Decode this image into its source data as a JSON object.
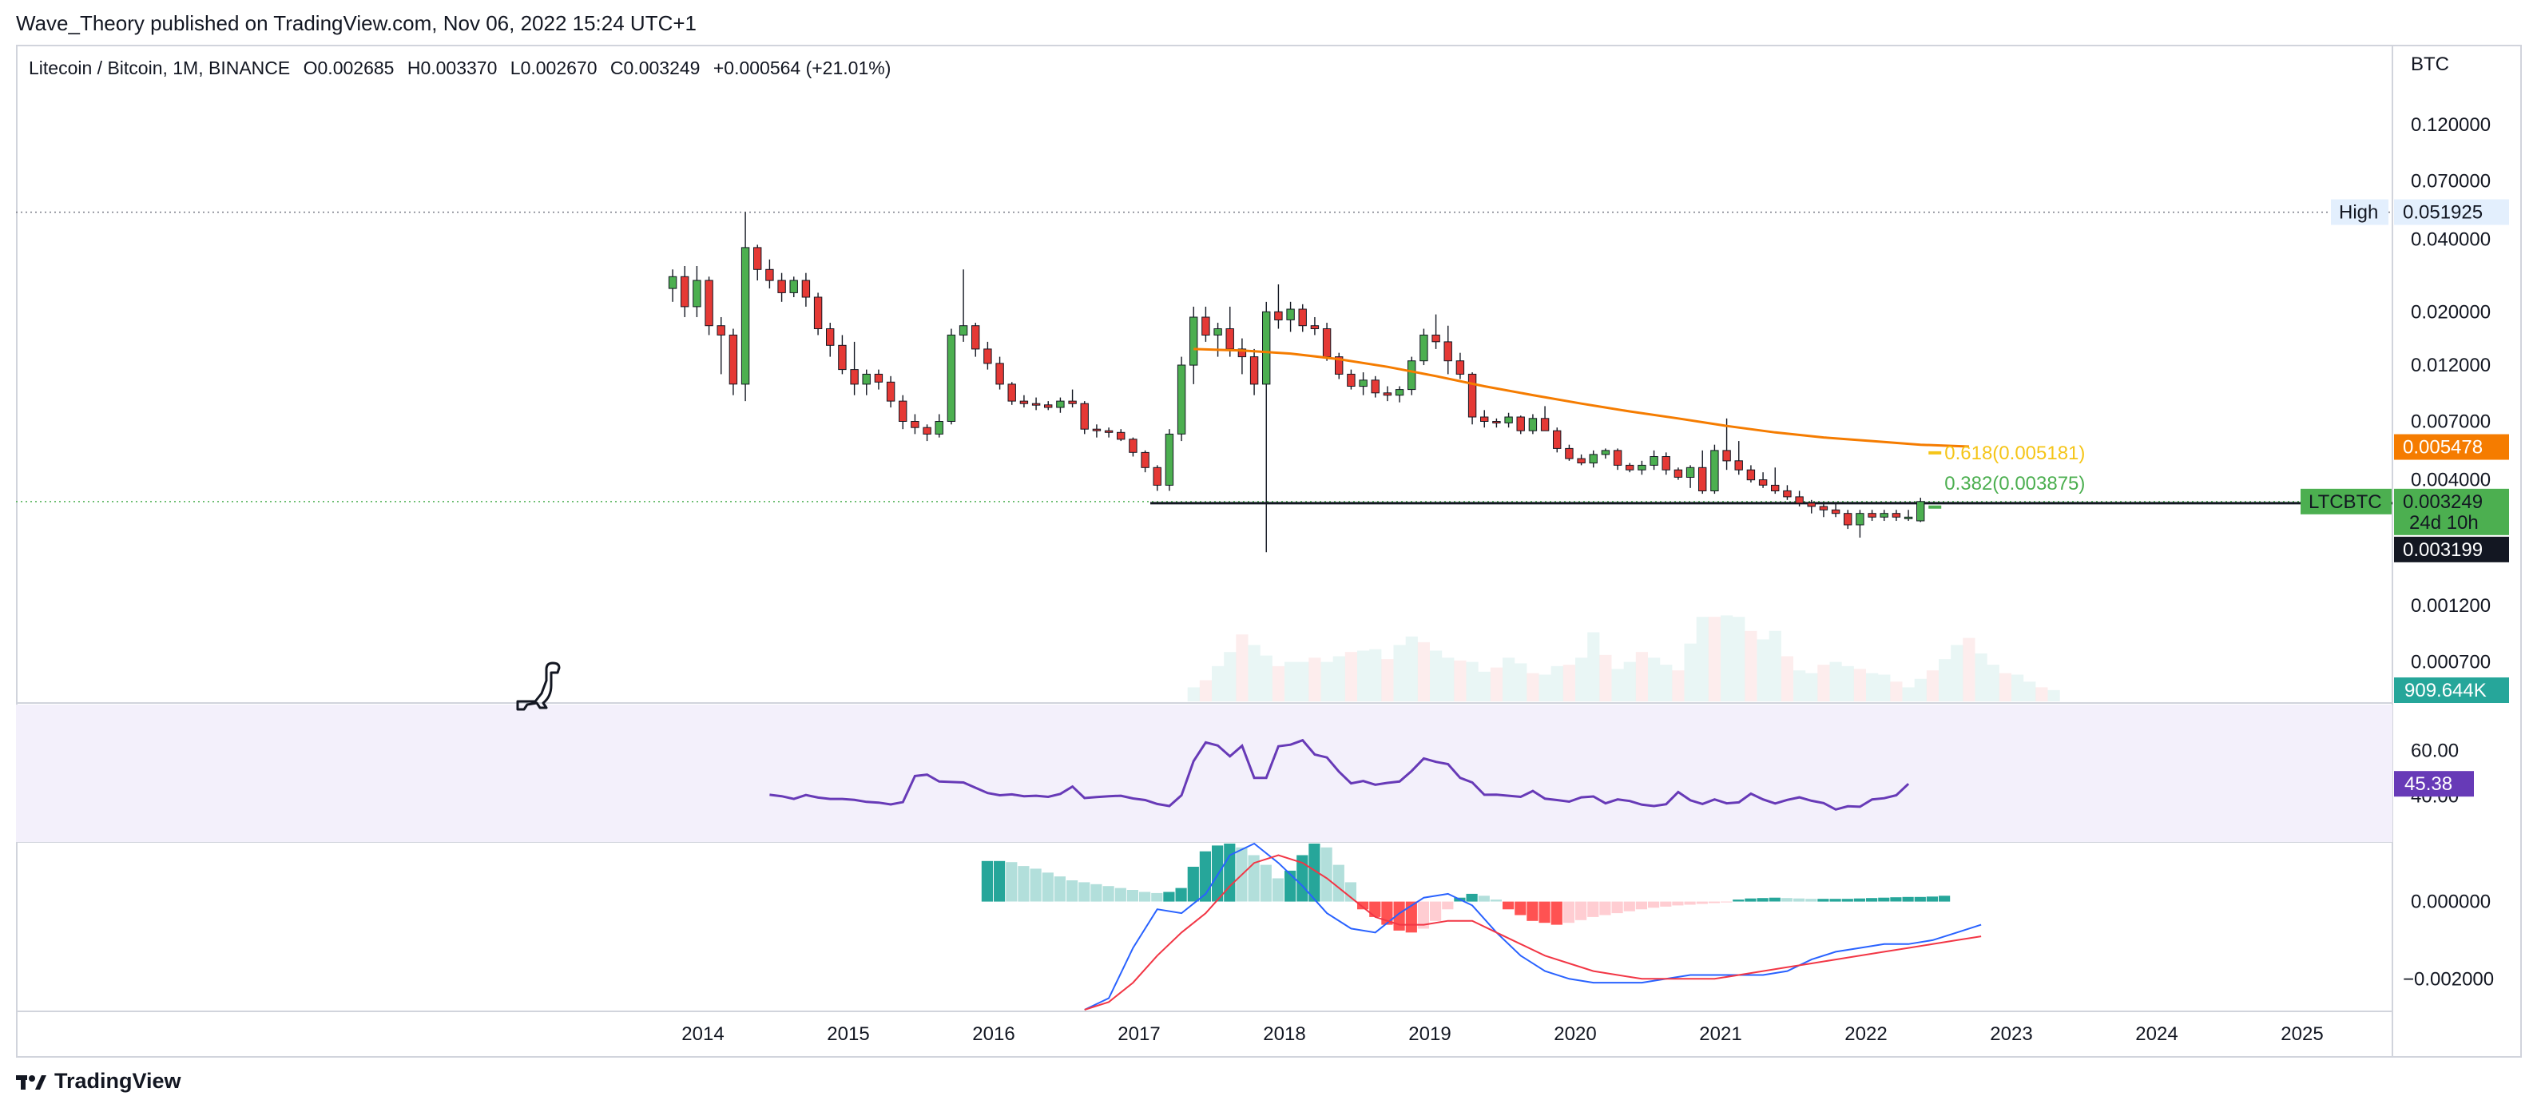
{
  "header": {
    "publisher_line": "Wave_Theory published on TradingView.com, Nov 06, 2022 15:24 UTC+1"
  },
  "legend": {
    "symbol": "Litecoin / Bitcoin, 1M, BINANCE",
    "open": "O0.002685",
    "high": "H0.003370",
    "low": "L0.002670",
    "close": "C0.003249",
    "change": "+0.000564 (+21.01%)"
  },
  "price_axis": {
    "currency": "BTC",
    "ticks": [
      "0.120000",
      "0.070000",
      "0.040000",
      "0.020000",
      "0.012000",
      "0.007000",
      "0.004000",
      "0.001200",
      "0.000700"
    ],
    "high_label": "High",
    "high_value": "0.051925",
    "ma_value": "0.005478",
    "symbol_tag": "LTCBTC",
    "last_price": "0.003249",
    "countdown": "24d 10h",
    "support_price": "0.003199",
    "volume_value": "909.644K"
  },
  "rsi_axis": {
    "ticks": [
      "60.00",
      "40.00"
    ],
    "value": "45.38"
  },
  "macd_axis": {
    "ticks": [
      "0.000000",
      "−0.002000"
    ]
  },
  "fib_labels": {
    "level_618": "0.618(0.005181)",
    "level_382": "0.382(0.003875)"
  },
  "time_axis": {
    "labels": [
      "2014",
      "2015",
      "2016",
      "2017",
      "2018",
      "2019",
      "2020",
      "2021",
      "2022",
      "2023",
      "2024",
      "2025"
    ]
  },
  "footer": {
    "brand": "TradingView"
  },
  "colors": {
    "up": "#4caf50",
    "down": "#e53935",
    "ma": "#f57c00",
    "rsi": "#673ab7",
    "macd": "#2962ff",
    "signal": "#f23645",
    "hist_up_strong": "#26a69a",
    "hist_up_weak": "#b2dfdb",
    "hist_down_strong": "#ff5252",
    "hist_down_weak": "#ffcdd2",
    "volume_up": "#26a69a",
    "volume_down": "#ef5350"
  },
  "chart_data": {
    "type": "candlestick",
    "title": "Litecoin / Bitcoin, 1M, BINANCE",
    "yscale": "log",
    "ylim": [
      0.00055,
      0.19
    ],
    "x_start": "2013-10",
    "candles": [
      [
        0.025,
        0.03,
        0.022,
        0.028
      ],
      [
        0.028,
        0.031,
        0.019,
        0.021
      ],
      [
        0.021,
        0.031,
        0.019,
        0.027
      ],
      [
        0.027,
        0.028,
        0.016,
        0.0175
      ],
      [
        0.0175,
        0.019,
        0.011,
        0.016
      ],
      [
        0.016,
        0.017,
        0.009,
        0.01
      ],
      [
        0.01,
        0.0519,
        0.0085,
        0.037
      ],
      [
        0.037,
        0.038,
        0.027,
        0.03
      ],
      [
        0.03,
        0.033,
        0.025,
        0.027
      ],
      [
        0.027,
        0.029,
        0.022,
        0.024
      ],
      [
        0.024,
        0.028,
        0.023,
        0.027
      ],
      [
        0.027,
        0.029,
        0.021,
        0.023
      ],
      [
        0.023,
        0.024,
        0.016,
        0.017
      ],
      [
        0.017,
        0.018,
        0.013,
        0.0145
      ],
      [
        0.0145,
        0.016,
        0.011,
        0.0115
      ],
      [
        0.0115,
        0.015,
        0.009,
        0.01
      ],
      [
        0.01,
        0.0115,
        0.009,
        0.011
      ],
      [
        0.011,
        0.0115,
        0.0095,
        0.0102
      ],
      [
        0.0102,
        0.0108,
        0.008,
        0.0085
      ],
      [
        0.0085,
        0.009,
        0.0065,
        0.007
      ],
      [
        0.007,
        0.0075,
        0.0062,
        0.0066
      ],
      [
        0.0066,
        0.0068,
        0.0058,
        0.0062
      ],
      [
        0.0062,
        0.0075,
        0.006,
        0.007
      ],
      [
        0.007,
        0.017,
        0.0068,
        0.016
      ],
      [
        0.016,
        0.03,
        0.015,
        0.0175
      ],
      [
        0.0175,
        0.018,
        0.013,
        0.014
      ],
      [
        0.014,
        0.015,
        0.0115,
        0.0122
      ],
      [
        0.0122,
        0.013,
        0.0095,
        0.01
      ],
      [
        0.01,
        0.0102,
        0.0082,
        0.0085
      ],
      [
        0.0085,
        0.009,
        0.008,
        0.0083
      ],
      [
        0.0083,
        0.0088,
        0.0078,
        0.0082
      ],
      [
        0.0082,
        0.0085,
        0.0078,
        0.008
      ],
      [
        0.008,
        0.0088,
        0.0076,
        0.0085
      ],
      [
        0.0085,
        0.0095,
        0.008,
        0.0083
      ],
      [
        0.0083,
        0.0085,
        0.0062,
        0.0065
      ],
      [
        0.0065,
        0.0068,
        0.006,
        0.0064
      ],
      [
        0.0064,
        0.0066,
        0.006,
        0.0063
      ],
      [
        0.0063,
        0.0065,
        0.0058,
        0.0059
      ],
      [
        0.0059,
        0.006,
        0.005,
        0.0052
      ],
      [
        0.0052,
        0.0053,
        0.0043,
        0.0045
      ],
      [
        0.0045,
        0.0046,
        0.0036,
        0.0038
      ],
      [
        0.0038,
        0.0065,
        0.0036,
        0.0062
      ],
      [
        0.0062,
        0.013,
        0.0058,
        0.012
      ],
      [
        0.012,
        0.021,
        0.01,
        0.019
      ],
      [
        0.019,
        0.021,
        0.015,
        0.016
      ],
      [
        0.016,
        0.018,
        0.013,
        0.017
      ],
      [
        0.017,
        0.021,
        0.013,
        0.014
      ],
      [
        0.014,
        0.0155,
        0.011,
        0.013
      ],
      [
        0.013,
        0.014,
        0.009,
        0.01
      ],
      [
        0.01,
        0.022,
        0.002,
        0.02
      ],
      [
        0.02,
        0.026,
        0.017,
        0.0185
      ],
      [
        0.0185,
        0.022,
        0.0165,
        0.0205
      ],
      [
        0.0205,
        0.0215,
        0.0165,
        0.0175
      ],
      [
        0.0175,
        0.019,
        0.016,
        0.017
      ],
      [
        0.017,
        0.018,
        0.0125,
        0.013
      ],
      [
        0.013,
        0.0135,
        0.0105,
        0.011
      ],
      [
        0.011,
        0.0115,
        0.0095,
        0.0098
      ],
      [
        0.0098,
        0.0112,
        0.009,
        0.0104
      ],
      [
        0.0104,
        0.0108,
        0.0088,
        0.0092
      ],
      [
        0.0092,
        0.0098,
        0.0085,
        0.009
      ],
      [
        0.009,
        0.0098,
        0.0084,
        0.0095
      ],
      [
        0.0095,
        0.013,
        0.009,
        0.0125
      ],
      [
        0.0125,
        0.017,
        0.012,
        0.016
      ],
      [
        0.016,
        0.0195,
        0.014,
        0.015
      ],
      [
        0.015,
        0.0175,
        0.011,
        0.0125
      ],
      [
        0.0125,
        0.0135,
        0.0105,
        0.011
      ],
      [
        0.011,
        0.0112,
        0.0068,
        0.0073
      ],
      [
        0.0073,
        0.0078,
        0.0066,
        0.007
      ],
      [
        0.007,
        0.0072,
        0.0066,
        0.0069
      ],
      [
        0.0069,
        0.0076,
        0.0066,
        0.0073
      ],
      [
        0.0073,
        0.0074,
        0.0062,
        0.0064
      ],
      [
        0.0064,
        0.0075,
        0.0062,
        0.0072
      ],
      [
        0.0072,
        0.0081,
        0.0068,
        0.0064
      ],
      [
        0.0064,
        0.0066,
        0.0052,
        0.0054
      ],
      [
        0.0054,
        0.0056,
        0.0048,
        0.0049
      ],
      [
        0.0049,
        0.0051,
        0.0046,
        0.0047
      ],
      [
        0.0047,
        0.0053,
        0.0045,
        0.0051
      ],
      [
        0.0051,
        0.0054,
        0.0049,
        0.0053
      ],
      [
        0.0053,
        0.0054,
        0.0044,
        0.0046
      ],
      [
        0.0046,
        0.0047,
        0.0043,
        0.0044
      ],
      [
        0.0044,
        0.0048,
        0.0042,
        0.0046
      ],
      [
        0.0046,
        0.0053,
        0.0044,
        0.005
      ],
      [
        0.005,
        0.0052,
        0.0042,
        0.0044
      ],
      [
        0.0044,
        0.0045,
        0.004,
        0.0041
      ],
      [
        0.0041,
        0.0046,
        0.0037,
        0.0045
      ],
      [
        0.0045,
        0.0053,
        0.0035,
        0.0036
      ],
      [
        0.0036,
        0.0056,
        0.0035,
        0.0053
      ],
      [
        0.0053,
        0.0072,
        0.0044,
        0.0048
      ],
      [
        0.0048,
        0.0058,
        0.0042,
        0.0044
      ],
      [
        0.0044,
        0.0046,
        0.0039,
        0.004
      ],
      [
        0.004,
        0.0043,
        0.0037,
        0.0038
      ],
      [
        0.0038,
        0.0045,
        0.0035,
        0.0036
      ],
      [
        0.0036,
        0.0038,
        0.0033,
        0.0034
      ],
      [
        0.0034,
        0.0036,
        0.0031,
        0.0032
      ],
      [
        0.0032,
        0.0033,
        0.0029,
        0.0031
      ],
      [
        0.0031,
        0.0032,
        0.0028,
        0.003
      ],
      [
        0.003,
        0.0032,
        0.0028,
        0.0029
      ],
      [
        0.0029,
        0.003,
        0.0025,
        0.0026
      ],
      [
        0.0026,
        0.003,
        0.0023,
        0.0029
      ],
      [
        0.0029,
        0.003,
        0.0027,
        0.0028
      ],
      [
        0.0028,
        0.003,
        0.0027,
        0.0029
      ],
      [
        0.0029,
        0.003,
        0.0027,
        0.0028
      ],
      [
        0.0028,
        0.003,
        0.0027,
        0.0028
      ],
      [
        0.0027,
        0.00337,
        0.00267,
        0.003249
      ]
    ],
    "ma_series": [
      0.014,
      0.0138,
      0.0134,
      0.0127,
      0.0118,
      0.0108,
      0.0098,
      0.009,
      0.0083,
      0.0077,
      0.0072,
      0.0067,
      0.0063,
      0.006,
      0.0058,
      0.0056,
      0.0055
    ],
    "ma_x_start": "2017-05",
    "ma_step_months": 4,
    "support_level": 0.003199,
    "high_level": 0.051925,
    "rsi": {
      "ylim": [
        20,
        80
      ],
      "x_start": "2014-06",
      "values": [
        40.6,
        40.0,
        38.8,
        40.5,
        39.4,
        38.8,
        38.8,
        38.4,
        37.5,
        37.2,
        36.4,
        37.4,
        48.8,
        49.4,
        46.4,
        46.2,
        46.0,
        43.7,
        41.4,
        40.4,
        40.8,
        40.0,
        40.2,
        39.7,
        41.0,
        44.2,
        39.2,
        39.6,
        40.0,
        40.2,
        39.0,
        38.3,
        36.6,
        35.7,
        40.4,
        55.3,
        63.5,
        62.1,
        57.4,
        62.0,
        48.0,
        48.0,
        61.8,
        62.5,
        64.4,
        58.2,
        56.9,
        50.7,
        45.6,
        46.6,
        45.0,
        45.8,
        46.4,
        51.0,
        56.5,
        55.0,
        54.0,
        48.0,
        46.0,
        40.6,
        40.7,
        40.2,
        39.7,
        42.3,
        38.9,
        38.3,
        37.6,
        39.5,
        39.9,
        36.9,
        38.6,
        37.9,
        36.3,
        35.7,
        36.5,
        41.8,
        38.2,
        36.6,
        38.6,
        36.9,
        37.3,
        41.1,
        38.6,
        36.8,
        38.4,
        39.5,
        38.0,
        37.0,
        34.2,
        35.6,
        35.4,
        38.6,
        39.1,
        40.4,
        45.4
      ]
    },
    "macd": {
      "ylim": [
        -0.0028,
        0.0015
      ],
      "hist_x_start": "2015-12",
      "hist": [
        0.00105,
        0.00105,
        0.00102,
        0.00092,
        0.00085,
        0.00075,
        0.00065,
        0.00055,
        0.0005,
        0.00045,
        0.0004,
        0.00035,
        0.0003,
        0.00025,
        0.00022,
        0.00025,
        0.00035,
        0.0009,
        0.0013,
        0.00145,
        0.0015,
        0.0014,
        0.0012,
        0.00095,
        0.0006,
        0.0008,
        0.0012,
        0.0015,
        0.0014,
        0.00095,
        0.0005,
        -0.0002,
        -0.0004,
        -0.0006,
        -0.00075,
        -0.0008,
        -0.0007,
        -0.0005,
        -0.0002,
        0.0001,
        0.0002,
        0.00015,
        5e-05,
        -0.0002,
        -0.00035,
        -0.0005,
        -0.00055,
        -0.0006,
        -0.00055,
        -0.00048,
        -0.0004,
        -0.00035,
        -0.0003,
        -0.00025,
        -0.0002,
        -0.00016,
        -0.00013,
        -0.0001,
        -8e-05,
        -6e-05,
        -4e-05,
        -2e-05,
        5e-05,
        8e-05,
        9e-05,
        0.0001,
        9e-05,
        8e-05,
        7e-05,
        7e-05,
        7e-05,
        7e-05,
        8e-05,
        9e-05,
        0.0001,
        0.00011,
        0.00012,
        0.00012,
        0.00013,
        0.00015
      ],
      "macd_line": [
        -0.0035,
        -0.0025,
        -0.0012,
        -0.0002,
        -0.0003,
        0.0002,
        0.0012,
        0.0015,
        0.001,
        0.0004,
        -0.0003,
        -0.0007,
        -0.0008,
        -0.0003,
        0.0001,
        0.0002,
        -0.0001,
        -0.0008,
        -0.0014,
        -0.0018,
        -0.002,
        -0.0021,
        -0.0021,
        -0.0021,
        -0.002,
        -0.0019,
        -0.0019,
        -0.0019,
        -0.0019,
        -0.0018,
        -0.0015,
        -0.0013,
        -0.0012,
        -0.0011,
        -0.0011,
        -0.001,
        -0.0008,
        -0.0006
      ],
      "signal_line": [
        -0.0028,
        -0.0026,
        -0.0021,
        -0.0014,
        -0.0008,
        -0.0003,
        0.0004,
        0.001,
        0.0012,
        0.001,
        0.0006,
        0.0001,
        -0.0004,
        -0.0006,
        -0.0006,
        -0.0005,
        -0.0005,
        -0.0008,
        -0.0011,
        -0.0014,
        -0.0016,
        -0.0018,
        -0.0019,
        -0.002,
        -0.002,
        -0.002,
        -0.002,
        -0.0019,
        -0.0018,
        -0.0017,
        -0.0016,
        -0.0015,
        -0.0014,
        -0.0013,
        -0.0012,
        -0.0011,
        -0.001,
        -0.0009
      ],
      "line_x_start": "2016-08",
      "line_step_months": 2
    },
    "volume": {
      "x_start": "2017-05",
      "max": 1700,
      "values": [
        200,
        300,
        500,
        700,
        950,
        800,
        650,
        500,
        560,
        560,
        620,
        560,
        640,
        700,
        720,
        740,
        600,
        800,
        920,
        840,
        720,
        620,
        580,
        560,
        420,
        480,
        620,
        540,
        400,
        380,
        500,
        520,
        620,
        980,
        660,
        460,
        560,
        700,
        620,
        520,
        440,
        820,
        1200,
        1200,
        1220,
        1200,
        1000,
        880,
        1000,
        640,
        440,
        400,
        520,
        560,
        500,
        460,
        400,
        380,
        280,
        200,
        320,
        440,
        600,
        800,
        900,
        680,
        520,
        400,
        380,
        280,
        200,
        160
      ]
    }
  }
}
